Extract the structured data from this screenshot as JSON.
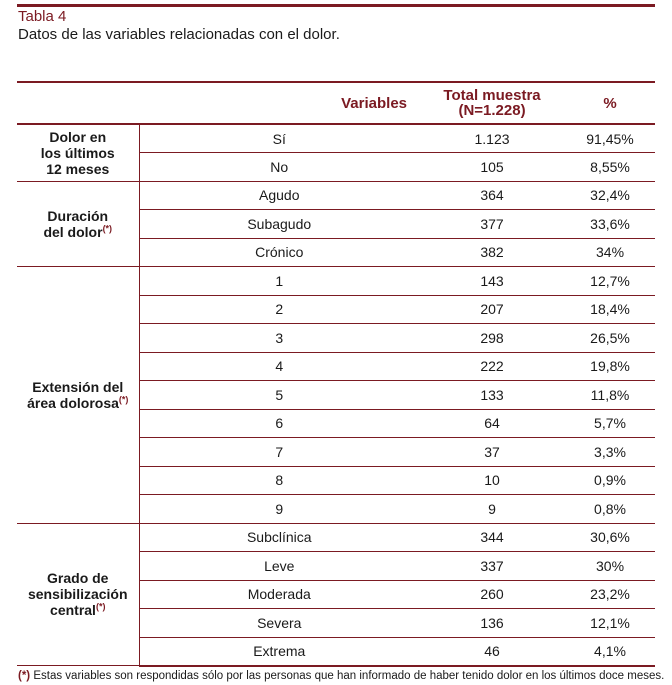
{
  "caption": {
    "label": "Tabla 4",
    "title": "Datos de las variables relacionadas con el dolor."
  },
  "headers": {
    "variables": "Variables",
    "total_line1": "Total muestra",
    "total_line2": "(N=1.228)",
    "pct": "%"
  },
  "groups": [
    {
      "name_lines": [
        "Dolor en",
        "los últimos",
        "12 meses"
      ],
      "mark": "",
      "rows": [
        {
          "label": "Sí",
          "n": "1.123",
          "pct": "91,45%"
        },
        {
          "label": "No",
          "n": "105",
          "pct": "8,55%"
        }
      ]
    },
    {
      "name_lines": [
        "Duración",
        "del dolor"
      ],
      "mark": "(*)",
      "rows": [
        {
          "label": "Agudo",
          "n": "364",
          "pct": "32,4%"
        },
        {
          "label": "Subagudo",
          "n": "377",
          "pct": "33,6%"
        },
        {
          "label": "Crónico",
          "n": "382",
          "pct": "34%"
        }
      ]
    },
    {
      "name_lines": [
        "Extensión del",
        "área dolorosa"
      ],
      "mark": "(*)",
      "rows": [
        {
          "label": "1",
          "n": "143",
          "pct": "12,7%"
        },
        {
          "label": "2",
          "n": "207",
          "pct": "18,4%"
        },
        {
          "label": "3",
          "n": "298",
          "pct": "26,5%"
        },
        {
          "label": "4",
          "n": "222",
          "pct": "19,8%"
        },
        {
          "label": "5",
          "n": "133",
          "pct": "11,8%"
        },
        {
          "label": "6",
          "n": "64",
          "pct": "5,7%"
        },
        {
          "label": "7",
          "n": "37",
          "pct": "3,3%"
        },
        {
          "label": "8",
          "n": "10",
          "pct": "0,9%"
        },
        {
          "label": "9",
          "n": "9",
          "pct": "0,8%"
        }
      ]
    },
    {
      "name_lines": [
        "Grado de",
        "sensibilización",
        "central"
      ],
      "mark": "(*)",
      "rows": [
        {
          "label": "Subclínica",
          "n": "344",
          "pct": "30,6%"
        },
        {
          "label": "Leve",
          "n": "337",
          "pct": "30%"
        },
        {
          "label": "Moderada",
          "n": "260",
          "pct": "23,2%"
        },
        {
          "label": "Severa",
          "n": "136",
          "pct": "12,1%"
        },
        {
          "label": "Extrema",
          "n": "46",
          "pct": "4,1%"
        }
      ]
    }
  ],
  "footnote": {
    "mark": "(*)",
    "text": "Estas variables son respondidas sólo por las personas que han informado de haber tenido dolor en los últimos doce meses."
  }
}
